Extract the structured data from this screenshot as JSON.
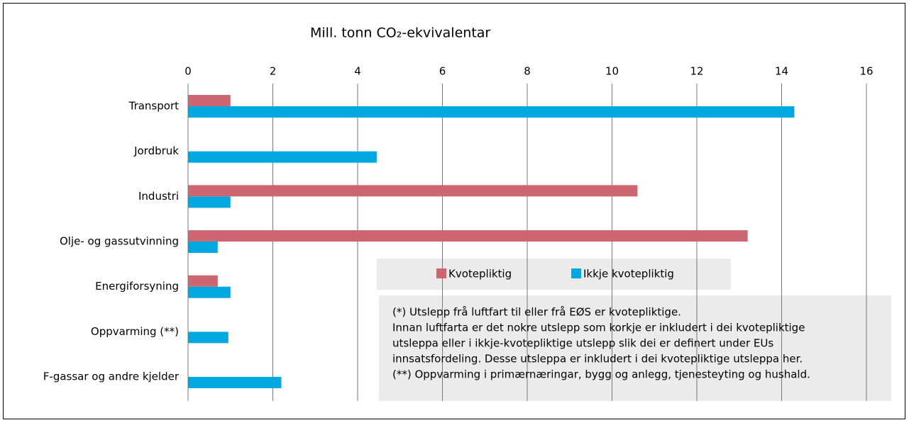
{
  "chart_data": {
    "type": "hbar",
    "title": "Mill. tonn CO₂-ekvivalentar",
    "categories": [
      "Transport",
      "Jordbruk",
      "Industri",
      "Olje- og gassutvinning",
      "Energiforsyning",
      "Oppvarming (**)",
      "F-gassar og andre kjelder"
    ],
    "series": [
      {
        "name": "Kvotepliktig",
        "color": "#cc6670",
        "values": [
          1.0,
          0,
          10.6,
          13.2,
          0.7,
          0,
          0
        ]
      },
      {
        "name": "Ikkje kvotepliktig",
        "color": "#00a7e1",
        "values": [
          14.3,
          4.45,
          1.0,
          0.7,
          1.0,
          0.95,
          2.2
        ]
      }
    ],
    "xlim": [
      0,
      16
    ],
    "xticks": [
      0,
      2,
      4,
      6,
      8,
      10,
      12,
      14,
      16
    ],
    "grid": true,
    "notes": [
      "(*)  Utslepp frå luftfart til eller frå EØS er kvotepliktige.",
      "Innan luftfarta er det nokre utslepp som korkje er inkludert i dei kvotepliktige",
      "utsleppa eller i ikkje-kvotepliktige utslepp slik dei er definert under EUs",
      "innsatsfordeling. Desse utsleppa er inkludert i dei kvotepliktige utsleppa her.",
      "(**) Oppvarming i primærnæringar, bygg og anlegg, tjenesteyting og hushald."
    ]
  }
}
